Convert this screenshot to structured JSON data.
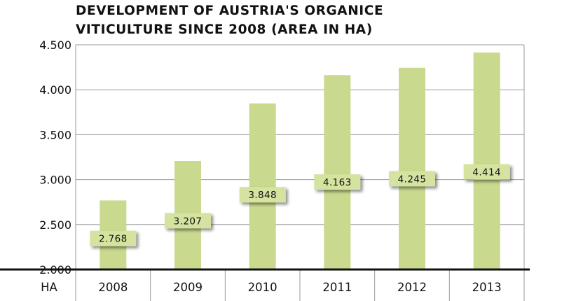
{
  "chart_data": {
    "type": "bar",
    "title_lines": [
      "DEVELOPMENT OF AUSTRIA'S ORGANICE",
      "VITICULTURE SINCE 2008 (AREA IN HA)"
    ],
    "xlabel": "HA",
    "ylabel": "",
    "categories": [
      "2008",
      "2009",
      "2010",
      "2011",
      "2012",
      "2013"
    ],
    "values": [
      2768,
      3207,
      3848,
      4163,
      4245,
      4414
    ],
    "value_labels": [
      "2.768",
      "3.207",
      "3.848",
      "4.163",
      "4.245",
      "4.414"
    ],
    "ylim": [
      2000,
      4500
    ],
    "yticks": [
      2000,
      2500,
      3000,
      3500,
      4000,
      4500
    ],
    "ytick_labels": [
      "2.000",
      "2.500",
      "3.000",
      "3.500",
      "4.000",
      "4.500"
    ],
    "grid": true,
    "colors": {
      "bar": "#c9d98e",
      "bar_edge": "#b4c676",
      "label_box": "#d4e3a0",
      "grid": "#9a9a9a",
      "axis": "#111111",
      "text": "#111111"
    }
  }
}
